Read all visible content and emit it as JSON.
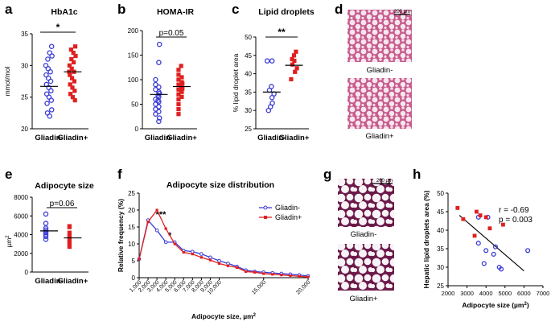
{
  "colors": {
    "gliadin_minus": "#3b3bd6",
    "gliadin_plus": "#e02020",
    "axis": "#000000"
  },
  "panels": {
    "a": {
      "letter": "a",
      "title": "HbA1c",
      "ylabel": "mmol/mol",
      "sig": "*"
    },
    "b": {
      "letter": "b",
      "title": "HOMA-IR",
      "sig": "p=0.05"
    },
    "c": {
      "letter": "c",
      "title": "Lipid droplets",
      "ylabel": "% lipid droplet area",
      "sig": "**"
    },
    "d": {
      "letter": "d",
      "scale": "200 µm",
      "cap_minus": "Gliadin-",
      "cap_plus": "Gliadin+"
    },
    "e": {
      "letter": "e",
      "title": "Adipocyte size",
      "ylabel": "µm",
      "ylabel_sup": "2",
      "sig": "p=0.06"
    },
    "f": {
      "letter": "f",
      "title": "Adipocyte size distribution",
      "sig1": "***",
      "sig2": "*"
    },
    "g": {
      "letter": "g",
      "scale": "200 µm",
      "cap_minus": "Gliadin-",
      "cap_plus": "Gliadin+"
    },
    "h": {
      "letter": "h",
      "r": "r = -0.69",
      "p": "p = 0.003"
    }
  },
  "chart_data": [
    {
      "id": "a",
      "type": "scatter",
      "title": "HbA1c",
      "ylabel": "mmol/mol",
      "categories": [
        "Gliadin-",
        "Gliadin+"
      ],
      "ylim": [
        20,
        35
      ],
      "yticks": [
        20,
        25,
        30,
        35
      ],
      "series": [
        {
          "name": "Gliadin-",
          "values": [
            33,
            32,
            31.5,
            31,
            30,
            29.5,
            29,
            28.5,
            28,
            27.5,
            27,
            26.5,
            26,
            25.5,
            25,
            24.5,
            24,
            23,
            22.5,
            22
          ],
          "mean": 26.7
        },
        {
          "name": "Gliadin+",
          "values": [
            33,
            32.5,
            32,
            31.5,
            31,
            30.5,
            30,
            29.5,
            29,
            29,
            28.5,
            28,
            27.5,
            27,
            26.5,
            26,
            25.5,
            25,
            24.5
          ],
          "mean": 29
        }
      ]
    },
    {
      "id": "b",
      "type": "scatter",
      "title": "HOMA-IR",
      "categories": [
        "Gliadin-",
        "Gliadin+"
      ],
      "ylim": [
        0,
        200
      ],
      "yticks": [
        0,
        50,
        100,
        150,
        200
      ],
      "series": [
        {
          "name": "Gliadin-",
          "values": [
            172,
            135,
            100,
            90,
            85,
            80,
            75,
            72,
            68,
            65,
            60,
            58,
            55,
            50,
            45,
            40,
            35,
            30,
            22,
            15
          ],
          "mean": 70
        },
        {
          "name": "Gliadin+",
          "values": [
            128,
            120,
            110,
            105,
            100,
            95,
            92,
            90,
            88,
            85,
            82,
            80,
            78,
            75,
            70,
            65,
            60,
            50,
            40,
            30
          ],
          "mean": 86
        }
      ]
    },
    {
      "id": "c",
      "type": "scatter",
      "title": "Lipid droplets",
      "ylabel": "% lipid droplet area",
      "categories": [
        "Gliadin-",
        "Gliadin+"
      ],
      "ylim": [
        25,
        50
      ],
      "yticks": [
        25,
        30,
        35,
        40,
        45,
        50
      ],
      "series": [
        {
          "name": "Gliadin-",
          "values": [
            43.5,
            43.5,
            36.5,
            35.5,
            34.5,
            33.5,
            32,
            31,
            30
          ],
          "mean": 35
        },
        {
          "name": "Gliadin+",
          "values": [
            46,
            45,
            44,
            43.5,
            42.5,
            41.5,
            40.5,
            38.5
          ],
          "mean": 42.3
        }
      ]
    },
    {
      "id": "e",
      "type": "scatter",
      "title": "Adipocyte size",
      "ylabel": "µm2",
      "categories": [
        "Gliadin-",
        "Gliadin+"
      ],
      "ylim": [
        0,
        8000
      ],
      "yticks": [
        0,
        2000,
        4000,
        6000,
        8000
      ],
      "series": [
        {
          "name": "Gliadin-",
          "values": [
            6200,
            5200,
            4700,
            4500,
            4300,
            4200,
            4000,
            3800,
            3500
          ],
          "mean": 4400
        },
        {
          "name": "Gliadin+",
          "values": [
            4900,
            4800,
            4200,
            3800,
            3700,
            3300,
            3200,
            2900,
            2700
          ],
          "mean": 3650
        }
      ]
    },
    {
      "id": "f",
      "type": "line",
      "title": "Adipocyte size distribution",
      "xlabel": "Adipocyte size, µm2",
      "ylabel": "Relative frequency (%)",
      "ylim": [
        0,
        25
      ],
      "yticks": [
        0,
        5,
        10,
        15,
        20,
        25
      ],
      "xticklabels": [
        "1,000",
        "2,000",
        "3,000",
        "4,000",
        "5,000",
        "6,000",
        "7,000",
        "8,000",
        "9,000",
        "10,000",
        "15,000",
        "20,000"
      ],
      "legend": "right",
      "series": [
        {
          "name": "Gliadin-",
          "values": [
            5.5,
            17,
            14,
            10.5,
            10.5,
            8,
            7.7,
            7,
            6,
            5,
            4.2,
            3.3,
            2.2,
            1.8,
            1.6,
            1.4,
            1.2,
            1,
            0.8,
            0.5
          ]
        },
        {
          "name": "Gliadin+",
          "values": [
            5.5,
            16.5,
            20,
            14.5,
            10,
            7.5,
            7,
            6,
            5.2,
            4.2,
            3.5,
            3,
            1.8,
            1.6,
            1.2,
            1,
            0.8,
            0.6,
            0.4,
            0.2
          ]
        }
      ]
    },
    {
      "id": "h",
      "type": "scatter",
      "xlabel": "Adipocyte size (µm2)",
      "ylabel": "Hepatic lipid droplets area (%)",
      "xlim": [
        2000,
        7000
      ],
      "ylim": [
        25,
        50
      ],
      "xticks": [
        2000,
        3000,
        4000,
        5000,
        6000,
        7000
      ],
      "yticks": [
        25,
        30,
        35,
        40,
        45,
        50
      ],
      "series": [
        {
          "name": "Gliadin-",
          "points": [
            [
              3600,
              43.5
            ],
            [
              4100,
              43.5
            ],
            [
              3600,
              36.5
            ],
            [
              4500,
              35.5
            ],
            [
              4000,
              34.5
            ],
            [
              6200,
              34.5
            ],
            [
              4400,
              33.5
            ],
            [
              3900,
              31
            ],
            [
              4700,
              30
            ],
            [
              4800,
              29.5
            ]
          ]
        },
        {
          "name": "Gliadin+",
          "points": [
            [
              2500,
              46
            ],
            [
              3500,
              45
            ],
            [
              3700,
              44
            ],
            [
              4000,
              43.5
            ],
            [
              2800,
              43
            ],
            [
              4900,
              41.5
            ],
            [
              4200,
              40.5
            ],
            [
              3400,
              38.5
            ]
          ]
        }
      ],
      "fit": {
        "x1": 2600,
        "y1": 44,
        "x2": 6000,
        "y2": 29
      }
    }
  ]
}
